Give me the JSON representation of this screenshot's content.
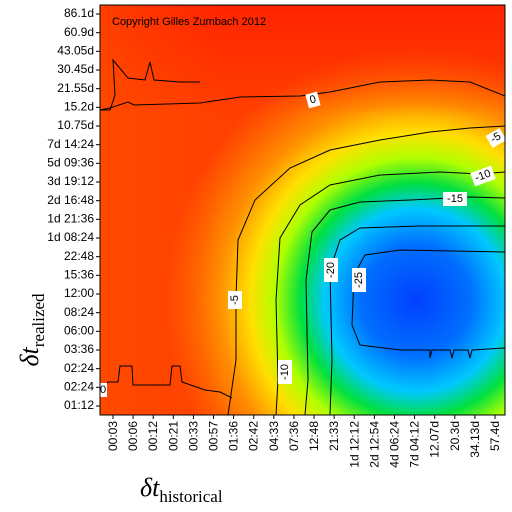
{
  "chart_data": {
    "type": "heatmap",
    "title": "",
    "copyright": "Copyright Gilles Zumbach 2012",
    "xlabel": "δt",
    "xlabel_sub": "historical",
    "ylabel": "δt",
    "ylabel_sub": "realized",
    "x_ticks": [
      "00:03",
      "00:06",
      "00:12",
      "00:21",
      "00:33",
      "00:57",
      "01:36",
      "02:42",
      "04:33",
      "07:36",
      "12:48",
      "21:33",
      "1d 12:12",
      "2d 12:54",
      "4d 06:24",
      "7d 04:12",
      "12.07d",
      "20.3d",
      "34.13d",
      "57.4d"
    ],
    "y_ticks": [
      "01:12",
      "02:24",
      "02:24",
      "03:36",
      "06:00",
      "08:24",
      "12:00",
      "15:36",
      "22:48",
      "1d 08:24",
      "1d 21:36",
      "2d 16:48",
      "3d 19:12",
      "5d 09:36",
      "7d 14:24",
      "10.75d",
      "15.2d",
      "21.55d",
      "30.45d",
      "43.05d",
      "60.9d",
      "86.1d"
    ],
    "contour_levels": [
      0,
      -5,
      -10,
      -15,
      -20,
      -25
    ],
    "contour_labels": [
      {
        "text": "0",
        "level": 0
      },
      {
        "text": "0",
        "level": 0
      },
      {
        "text": "-5",
        "level": -5
      },
      {
        "text": "-5",
        "level": -5
      },
      {
        "text": "-10",
        "level": -10
      },
      {
        "text": "-10",
        "level": -10
      },
      {
        "text": "-15",
        "level": -15
      },
      {
        "text": "-20",
        "level": -20
      },
      {
        "text": "-25",
        "level": -25
      }
    ],
    "colorscale": [
      {
        "value": 0,
        "color": "#ff2000"
      },
      {
        "value": -5,
        "color": "#ffd000"
      },
      {
        "value": -10,
        "color": "#a0ff00"
      },
      {
        "value": -15,
        "color": "#00e030"
      },
      {
        "value": -20,
        "color": "#00e0ff"
      },
      {
        "value": -25,
        "color": "#0080ff"
      },
      {
        "value": -30,
        "color": "#0040ff"
      }
    ]
  }
}
